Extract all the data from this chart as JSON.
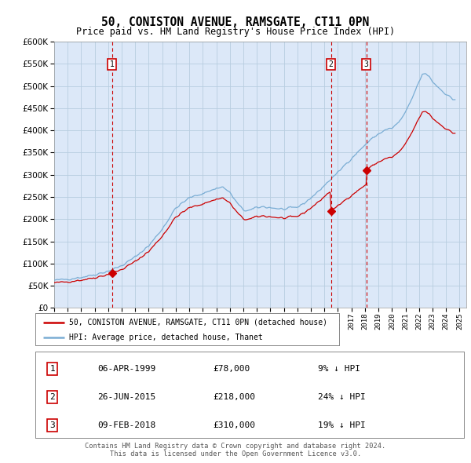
{
  "title": "50, CONISTON AVENUE, RAMSGATE, CT11 0PN",
  "subtitle": "Price paid vs. HM Land Registry's House Price Index (HPI)",
  "ylim": [
    0,
    600000
  ],
  "yticks": [
    0,
    50000,
    100000,
    150000,
    200000,
    250000,
    300000,
    350000,
    400000,
    450000,
    500000,
    550000,
    600000
  ],
  "ytick_labels": [
    "£0",
    "£50K",
    "£100K",
    "£150K",
    "£200K",
    "£250K",
    "£300K",
    "£350K",
    "£400K",
    "£450K",
    "£500K",
    "£550K",
    "£600K"
  ],
  "xlim_start": 1995.0,
  "xlim_end": 2025.5,
  "plot_bg_color": "#dce8f8",
  "grid_color": "#b8cde0",
  "line_color_red": "#cc0000",
  "line_color_blue": "#7aadd4",
  "vline_color": "#cc0000",
  "legend_label_red": "50, CONISTON AVENUE, RAMSGATE, CT11 0PN (detached house)",
  "legend_label_blue": "HPI: Average price, detached house, Thanet",
  "transactions": [
    {
      "num": 1,
      "date": "06-APR-1999",
      "price": "£78,000",
      "hpi": "9% ↓ HPI",
      "year": 1999.27,
      "price_val": 78000
    },
    {
      "num": 2,
      "date": "26-JUN-2015",
      "price": "£218,000",
      "hpi": "24% ↓ HPI",
      "year": 2015.49,
      "price_val": 218000
    },
    {
      "num": 3,
      "date": "09-FEB-2018",
      "price": "£310,000",
      "hpi": "19% ↓ HPI",
      "year": 2018.11,
      "price_val": 310000
    }
  ],
  "footer": "Contains HM Land Registry data © Crown copyright and database right 2024.\nThis data is licensed under the Open Government Licence v3.0."
}
